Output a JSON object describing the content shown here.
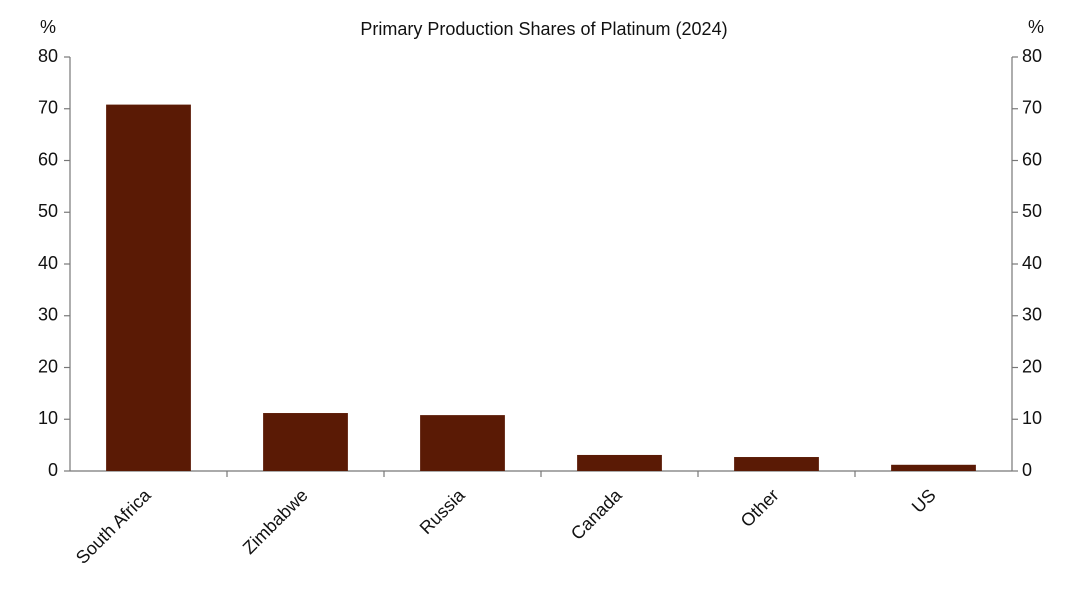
{
  "chart_data": {
    "type": "bar",
    "title": "Primary Production Shares of Platinum (2024)",
    "y_label": "%",
    "y2_label": "%",
    "categories": [
      "South Africa",
      "Zimbabwe",
      "Russia",
      "Canada",
      "Other",
      "US"
    ],
    "values": [
      70.8,
      11.2,
      10.8,
      3.1,
      2.7,
      1.2
    ],
    "color": "#5a1a05",
    "ylim": [
      0,
      80
    ],
    "yticks": [
      0,
      10,
      20,
      30,
      40,
      50,
      60,
      70,
      80
    ],
    "y2lim": [
      0,
      80
    ],
    "y2ticks": [
      0,
      10,
      20,
      30,
      40,
      50,
      60,
      70,
      80
    ],
    "grid": false
  }
}
